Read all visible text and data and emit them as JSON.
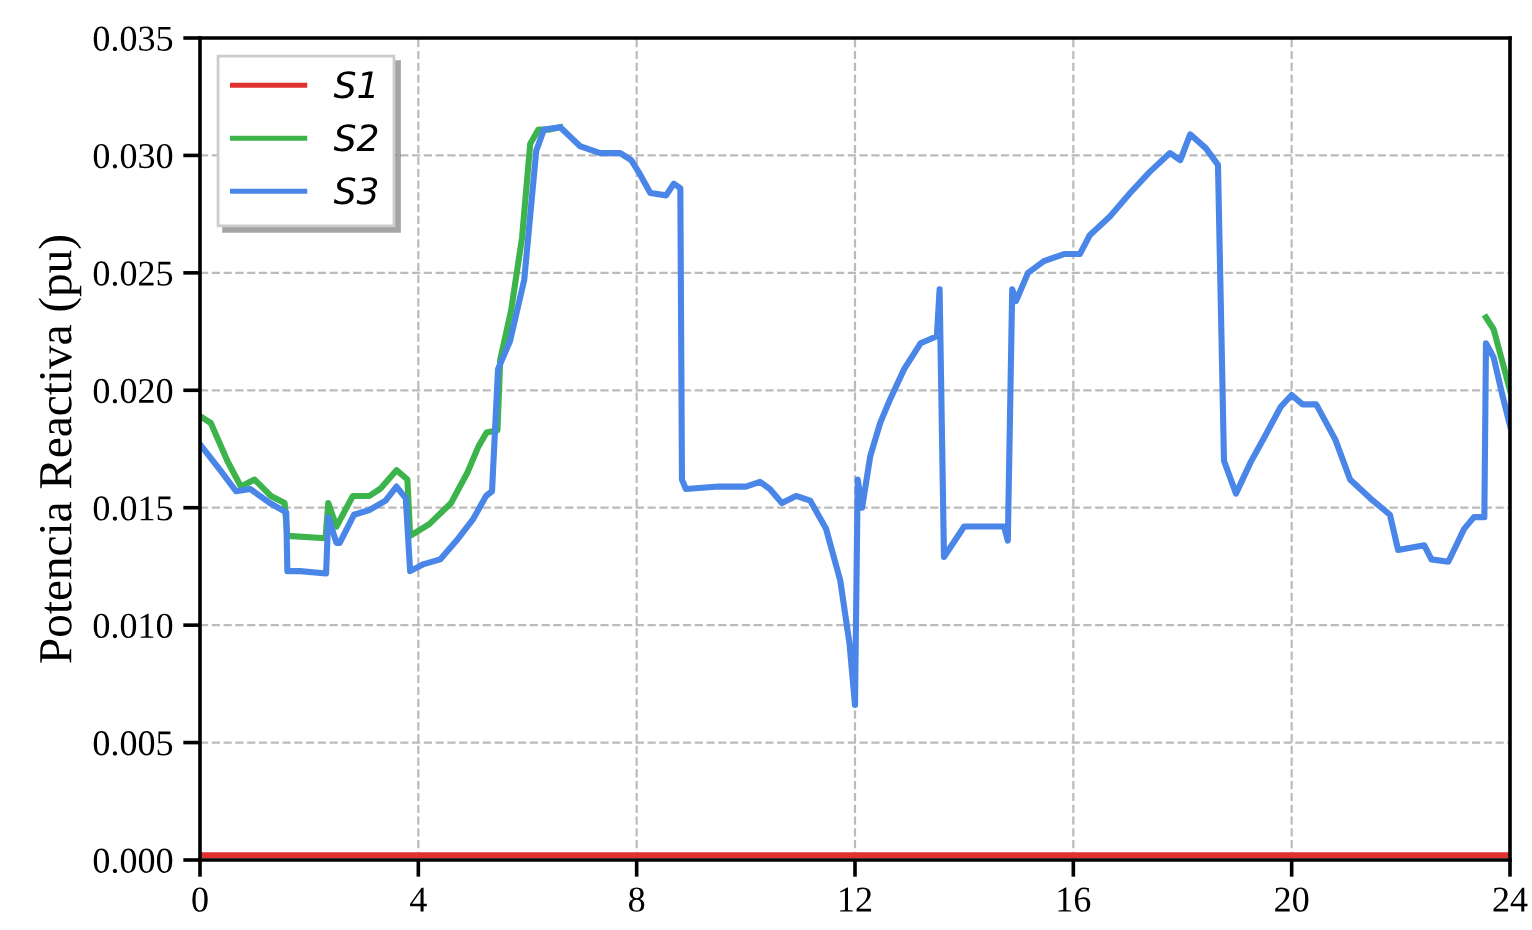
{
  "chart_data": {
    "type": "line",
    "ylabel": "Potencia Reactiva (pu)",
    "xlim": [
      0,
      24
    ],
    "ylim": [
      0,
      0.035
    ],
    "xticks": [
      0,
      4,
      8,
      12,
      16,
      20,
      24
    ],
    "yticks": [
      {
        "value": 0,
        "label": "0.000"
      },
      {
        "value": 0.005,
        "label": "0.005"
      },
      {
        "value": 0.01,
        "label": "0.010"
      },
      {
        "value": 0.015,
        "label": "0.015"
      },
      {
        "value": 0.02,
        "label": "0.020"
      },
      {
        "value": 0.025,
        "label": "0.025"
      },
      {
        "value": 0.03,
        "label": "0.030"
      },
      {
        "value": 0.035,
        "label": "0.035"
      }
    ],
    "grid": true,
    "legend": "top left",
    "marker": "none",
    "line_style": "solid",
    "series": [
      {
        "name": "S1",
        "color": "#e03030",
        "x": [
          0,
          24
        ],
        "values": [
          0.0002,
          0.0002
        ]
      },
      {
        "name": "S2",
        "color": "#3cb44b",
        "x": [
          0,
          0.2,
          0.5,
          0.75,
          1.0,
          1.3,
          1.55,
          1.6,
          2.3,
          2.35,
          2.5,
          2.8,
          3.1,
          3.3,
          3.6,
          3.8,
          3.85,
          4.2,
          4.6,
          4.9,
          5.1,
          5.25,
          5.45,
          5.5,
          5.7,
          5.9,
          6.05,
          6.2,
          6.4,
          6.6,
          6.96,
          7.33,
          7.7,
          7.9,
          8.06,
          8.25,
          8.54,
          8.68,
          8.8,
          8.83,
          8.9,
          9.5,
          10.0,
          10.26,
          10.44,
          10.66,
          10.92,
          11.18,
          11.47,
          11.73,
          11.9,
          12.0,
          12.05,
          12.13,
          12.28,
          12.46,
          12.64,
          12.9,
          13.2,
          13.5,
          13.55,
          13.63,
          14.0,
          14.73,
          14.8,
          14.88,
          14.95,
          15.17,
          15.46,
          15.83,
          16.12,
          16.3,
          16.67,
          17.04,
          17.4,
          17.77,
          17.96,
          18.14,
          18.43,
          18.65,
          18.76,
          18.98,
          19.24,
          19.5,
          19.8,
          20.0,
          20.2,
          20.45,
          20.8,
          21.07,
          21.44,
          21.8,
          21.95,
          22.43,
          22.56,
          22.87,
          23.16,
          23.34,
          23.53,
          23.56,
          23.7,
          23.85,
          24
        ],
        "values": [
          0.0189,
          0.0186,
          0.017,
          0.0159,
          0.0162,
          0.0155,
          0.0152,
          0.0138,
          0.0137,
          0.0152,
          0.0142,
          0.0155,
          0.0155,
          0.0158,
          0.0166,
          0.0162,
          0.0138,
          0.0143,
          0.0152,
          0.0165,
          0.0176,
          0.0182,
          0.0183,
          0.0213,
          0.0234,
          0.0265,
          0.0305,
          0.0311,
          0.0311,
          0.0312,
          null,
          null,
          null,
          null,
          null,
          null,
          null,
          null,
          null,
          null,
          null,
          null,
          null,
          null,
          null,
          null,
          null,
          null,
          null,
          null,
          null,
          null,
          null,
          null,
          null,
          null,
          null,
          null,
          null,
          null,
          null,
          null,
          null,
          null,
          null,
          null,
          null,
          null,
          null,
          null,
          null,
          null,
          null,
          null,
          null,
          null,
          null,
          null,
          null,
          null,
          null,
          null,
          null,
          null,
          null,
          null,
          null,
          null,
          null,
          null,
          null,
          null,
          null,
          null,
          null,
          null,
          null,
          null,
          null,
          0.0231,
          0.0226,
          0.0213,
          0.02
        ]
      },
      {
        "name": "S3",
        "color": "#4a86e8",
        "x": [
          0,
          0.37,
          0.66,
          0.92,
          1.28,
          1.58,
          1.6,
          1.83,
          2.31,
          2.35,
          2.5,
          2.56,
          2.82,
          3.1,
          3.4,
          3.6,
          3.77,
          3.85,
          4.1,
          4.4,
          4.7,
          5.0,
          5.24,
          5.35,
          5.46,
          5.68,
          5.94,
          6.16,
          6.3,
          6.6,
          6.96,
          7.33,
          7.7,
          7.9,
          8.06,
          8.25,
          8.54,
          8.68,
          8.8,
          8.83,
          8.9,
          9.5,
          10.0,
          10.26,
          10.44,
          10.66,
          10.92,
          11.18,
          11.47,
          11.73,
          11.9,
          12.0,
          12.05,
          12.13,
          12.28,
          12.46,
          12.64,
          12.9,
          13.2,
          13.5,
          13.55,
          13.63,
          14.0,
          14.73,
          14.8,
          14.88,
          14.95,
          15.17,
          15.46,
          15.83,
          16.12,
          16.3,
          16.67,
          17.04,
          17.4,
          17.77,
          17.96,
          18.14,
          18.43,
          18.65,
          18.76,
          18.98,
          19.24,
          19.5,
          19.8,
          20.0,
          20.2,
          20.45,
          20.8,
          21.07,
          21.44,
          21.8,
          21.95,
          22.43,
          22.56,
          22.87,
          23.16,
          23.34,
          23.53,
          23.56,
          23.7,
          23.86,
          24
        ],
        "values": [
          0.0177,
          0.0166,
          0.0157,
          0.0158,
          0.0152,
          0.0148,
          0.0123,
          0.0123,
          0.0122,
          0.0146,
          0.0135,
          0.0135,
          0.0147,
          0.0149,
          0.0153,
          0.0159,
          0.0154,
          0.0123,
          0.0126,
          0.0128,
          0.0136,
          0.0145,
          0.0155,
          0.0157,
          0.0209,
          0.0221,
          0.0247,
          0.0302,
          0.0311,
          0.0312,
          0.0304,
          0.0301,
          0.0301,
          0.0298,
          0.0292,
          0.0284,
          0.0283,
          0.0288,
          0.0286,
          0.0162,
          0.0158,
          0.0159,
          0.0159,
          0.0161,
          0.0158,
          0.0152,
          0.0155,
          0.0153,
          0.0141,
          0.0119,
          0.0092,
          0.0066,
          0.0162,
          0.015,
          0.0172,
          0.0186,
          0.0196,
          0.0209,
          0.022,
          0.0223,
          0.0243,
          0.0129,
          0.0142,
          0.0142,
          0.0136,
          0.0243,
          0.0238,
          0.025,
          0.0255,
          0.0258,
          0.0258,
          0.0266,
          0.0274,
          0.0284,
          0.0293,
          0.0301,
          0.0298,
          0.0309,
          0.0303,
          0.0296,
          0.017,
          0.0156,
          0.0169,
          0.018,
          0.0193,
          0.0198,
          0.0194,
          0.0194,
          0.0179,
          0.0162,
          0.0154,
          0.0147,
          0.0132,
          0.0134,
          0.0128,
          0.0127,
          0.0141,
          0.0146,
          0.0146,
          0.022,
          0.0214,
          0.0198,
          0.0185
        ]
      }
    ]
  }
}
